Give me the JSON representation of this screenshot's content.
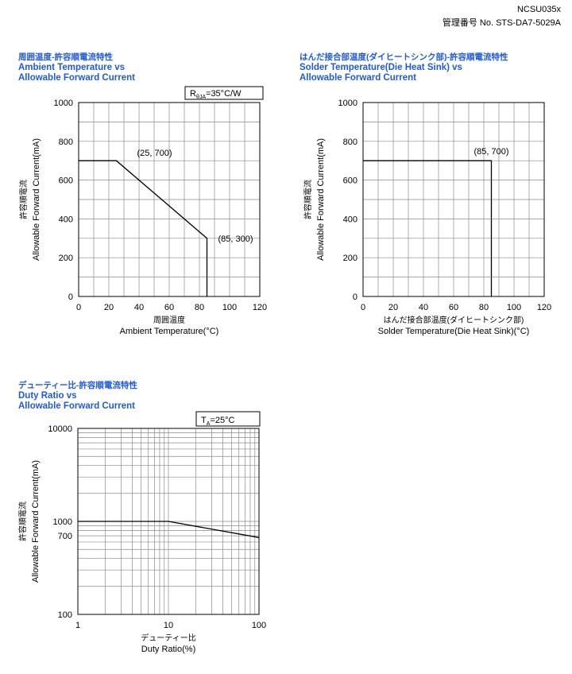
{
  "header": {
    "doc_id": "NCSU035x",
    "spec_number": "管理番号 No. STS-DA7-5029A"
  },
  "chart_data": [
    {
      "type": "line",
      "title_jp": "周囲温度-許容順電流特性",
      "title": "Ambient Temperature vs",
      "title2": "Allowable Forward Current",
      "xlabel_jp": "周囲温度",
      "xlabel": "Ambient Temperature(°C)",
      "ylabel_jp": "許容順電流",
      "ylabel": "Allowable Forward Current(mA)",
      "xlim": [
        0,
        120
      ],
      "ylim": [
        0,
        1000
      ],
      "xticks": [
        "0",
        "20",
        "40",
        "60",
        "80",
        "100",
        "120"
      ],
      "yticks": [
        "0",
        "200",
        "400",
        "600",
        "800",
        "1000"
      ],
      "grid": true,
      "condition": {
        "symbol": "R",
        "sub": "θJA",
        "text": "=35°C/W"
      },
      "series": [
        {
          "x": [
            0,
            25,
            85,
            85
          ],
          "y": [
            700,
            700,
            300,
            0
          ]
        }
      ],
      "annotations": [
        "(25, 700)",
        "(85, 300)"
      ]
    },
    {
      "type": "line",
      "title_jp": "はんだ接合部温度(ダイヒートシンク部)-許容順電流特性",
      "title": "Solder Temperature(Die Heat Sink) vs",
      "title2": "Allowable Forward Current",
      "xlabel_jp": "はんだ接合部温度(ダイヒートシンク部)",
      "xlabel": "Solder Temperature(Die Heat Sink)(°C)",
      "ylabel_jp": "許容順電流",
      "ylabel": "Allowable Forward Current(mA)",
      "xlim": [
        0,
        120
      ],
      "ylim": [
        0,
        1000
      ],
      "xticks": [
        "0",
        "20",
        "40",
        "60",
        "80",
        "100",
        "120"
      ],
      "yticks": [
        "0",
        "200",
        "400",
        "600",
        "800",
        "1000"
      ],
      "grid": true,
      "series": [
        {
          "x": [
            0,
            85,
            85
          ],
          "y": [
            700,
            700,
            0
          ]
        }
      ],
      "annotations": [
        "(85, 700)"
      ]
    },
    {
      "type": "line",
      "title_jp": "デューティー比-許容順電流特性",
      "title": "Duty Ratio vs",
      "title2": "Allowable Forward Current",
      "xlabel_jp": "デューティー比",
      "xlabel": "Duty Ratio(%)",
      "ylabel_jp": "許容順電流",
      "ylabel": "Allowable Forward Current(mA)",
      "xscale": "log",
      "yscale": "log",
      "xlim": [
        1,
        100
      ],
      "ylim": [
        100,
        10000
      ],
      "xticks": [
        "1",
        "10",
        "100"
      ],
      "yticks": [
        "100",
        "700",
        "1000",
        "10000"
      ],
      "grid": true,
      "condition": {
        "symbol": "T",
        "sub": "A",
        "text": "=25°C"
      },
      "series": [
        {
          "x": [
            1,
            10,
            100
          ],
          "y": [
            1000,
            1000,
            670
          ]
        }
      ]
    }
  ]
}
